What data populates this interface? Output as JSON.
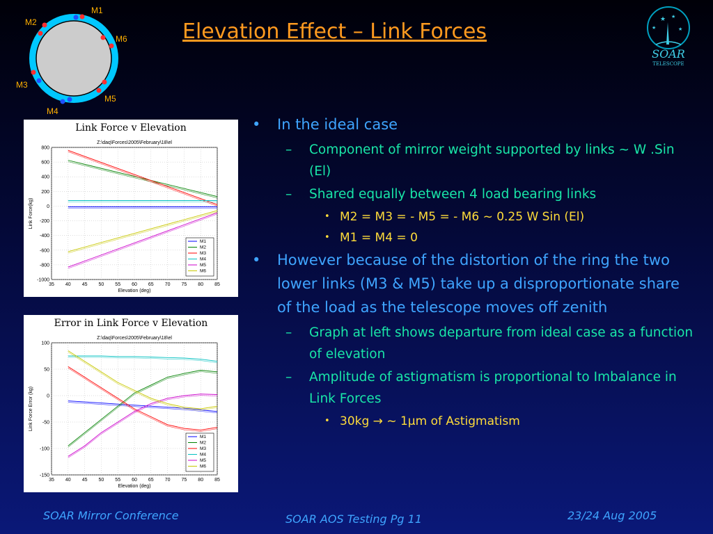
{
  "slide": {
    "title": "Elevation Effect – Link Forces",
    "ring_labels": [
      "M1",
      "M2",
      "M6",
      "M3",
      "M5",
      "M4"
    ],
    "logo": {
      "line1": "SOAR",
      "line2": "TELESCOPE"
    }
  },
  "bullets": [
    {
      "level": 1,
      "marker": "•",
      "text": "In the ideal case"
    },
    {
      "level": 2,
      "marker": "–",
      "text": "Component of mirror weight supported by links ~ W .Sin (El)"
    },
    {
      "level": 2,
      "marker": "–",
      "text": "Shared equally between 4 load bearing links"
    },
    {
      "level": 3,
      "marker": "•",
      "text": "M2 = M3 = - M5 = - M6 ~ 0.25 W Sin (El)"
    },
    {
      "level": 3,
      "marker": "•",
      "text": "M1 = M4 = 0"
    },
    {
      "level": 1,
      "marker": "•",
      "text": "However because of the distortion of the ring the two lower links (M3 & M5) take up a disproportionate share of the load as the telescope moves off zenith"
    },
    {
      "level": 2,
      "marker": "–",
      "text": "Graph at left shows departure from ideal case as a function of elevation"
    },
    {
      "level": 2,
      "marker": "–",
      "text": "Amplitude of astigmatism is proportional to Imbalance in Link Forces"
    },
    {
      "level": 3,
      "marker": "•",
      "text": "30kg → ~ 1µm of Astigmatism"
    }
  ],
  "footer": {
    "left": "SOAR Mirror Conference",
    "center": "SOAR AOS Testing Pg 11",
    "right": "23/24 Aug 2005"
  },
  "chart_data": [
    {
      "type": "line",
      "caption": "Link Force v Elevation",
      "title": "Z:\\daq\\Forces\\2005\\February\\18\\el",
      "xlabel": "Elevation (deg)",
      "ylabel": "Link Force(kg)",
      "xlim": [
        35,
        85
      ],
      "ylim": [
        -1000,
        800
      ],
      "xticks": [
        35,
        40,
        45,
        50,
        55,
        60,
        65,
        70,
        75,
        80,
        85
      ],
      "yticks": [
        800,
        600,
        400,
        200,
        0,
        -200,
        -400,
        -600,
        -800,
        -1000
      ],
      "grid": true,
      "legend": "bottom-right",
      "x": [
        40,
        85
      ],
      "series": [
        {
          "name": "M1",
          "color": "#0000ff",
          "values": [
            -10,
            -10
          ]
        },
        {
          "name": "M2",
          "color": "#008000",
          "values": [
            625,
            130
          ]
        },
        {
          "name": "M3",
          "color": "#ff0000",
          "values": [
            760,
            20
          ]
        },
        {
          "name": "M4",
          "color": "#00c0c0",
          "values": [
            75,
            75
          ]
        },
        {
          "name": "M5",
          "color": "#cc00cc",
          "values": [
            -830,
            -90
          ]
        },
        {
          "name": "M6",
          "color": "#c8c800",
          "values": [
            -620,
            -60
          ]
        }
      ]
    },
    {
      "type": "line",
      "caption": "Error in Link Force v Elevation",
      "title": "Z:\\daq\\Forces\\2005\\February\\18\\el",
      "xlabel": "Elevation (deg)",
      "ylabel": "Link Force Error (kg)",
      "xlim": [
        35,
        85
      ],
      "ylim": [
        -150,
        100
      ],
      "xticks": [
        35,
        40,
        45,
        50,
        55,
        60,
        65,
        70,
        75,
        80,
        85
      ],
      "yticks": [
        100,
        50,
        0,
        -50,
        -100,
        -150
      ],
      "grid": true,
      "legend": "bottom-right",
      "x": [
        40,
        45,
        50,
        55,
        60,
        65,
        70,
        75,
        80,
        85
      ],
      "series": [
        {
          "name": "M1",
          "color": "#0000ff",
          "values": [
            -10,
            -12,
            -14,
            -16,
            -18,
            -20,
            -22,
            -24,
            -27,
            -30
          ]
        },
        {
          "name": "M2",
          "color": "#008000",
          "values": [
            -95,
            -70,
            -45,
            -20,
            5,
            20,
            35,
            42,
            48,
            45
          ]
        },
        {
          "name": "M3",
          "color": "#ff0000",
          "values": [
            55,
            35,
            15,
            -5,
            -25,
            -40,
            -55,
            -62,
            -65,
            -60
          ]
        },
        {
          "name": "M4",
          "color": "#00c0c0",
          "values": [
            75,
            75,
            75,
            74,
            74,
            73,
            72,
            71,
            69,
            65
          ]
        },
        {
          "name": "M5",
          "color": "#cc00cc",
          "values": [
            -115,
            -95,
            -70,
            -50,
            -30,
            -15,
            -5,
            0,
            3,
            2
          ]
        },
        {
          "name": "M6",
          "color": "#c8c800",
          "values": [
            85,
            65,
            45,
            25,
            10,
            -5,
            -15,
            -22,
            -25,
            -20
          ]
        }
      ]
    }
  ]
}
